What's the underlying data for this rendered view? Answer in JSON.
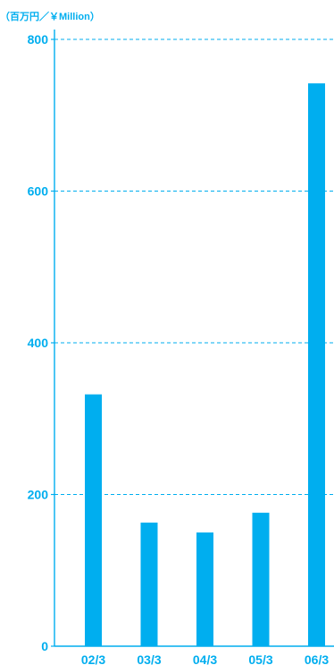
{
  "chart_data": {
    "type": "bar",
    "unit_label": "（百万円／￥Million）",
    "categories": [
      "02/3",
      "03/3",
      "04/3",
      "05/3",
      "06/3"
    ],
    "values": [
      332,
      163,
      150,
      176,
      742
    ],
    "ylim": [
      0,
      800
    ],
    "y_ticks": [
      "0",
      "200",
      "400",
      "600",
      "800"
    ],
    "y_tick_values": [
      0,
      200,
      400,
      600,
      800
    ],
    "grid": true,
    "bar_color": "#00AEEF",
    "axis_color": "#00AEEF",
    "text_color": "#00AEEF"
  }
}
